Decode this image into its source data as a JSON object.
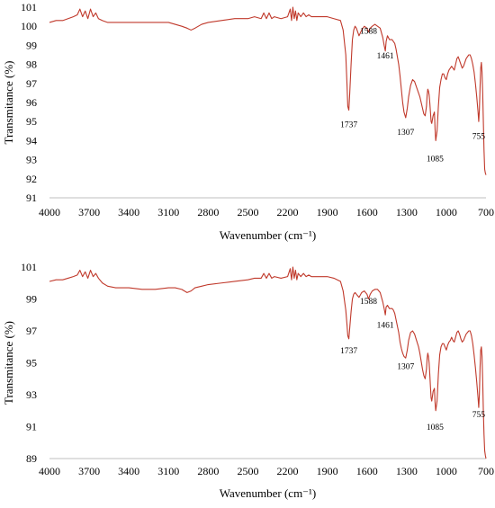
{
  "chart_data": [
    {
      "type": "line",
      "xlabel": "Wavenumber (cm⁻¹)",
      "ylabel": "Transmitance (%)",
      "xlim": [
        4000,
        700
      ],
      "ylim": [
        91,
        101
      ],
      "x_ticks": [
        "4000",
        "3700",
        "3400",
        "3100",
        "2800",
        "2500",
        "2200",
        "1900",
        "1600",
        "1300",
        "1000",
        "700"
      ],
      "y_ticks": [
        "91",
        "92",
        "93",
        "94",
        "95",
        "96",
        "97",
        "98",
        "99",
        "100",
        "101"
      ],
      "line_color": "#c0392b",
      "annotations": [
        {
          "label": "1588",
          "x": 1588,
          "y": 99.6
        },
        {
          "label": "1461",
          "x": 1461,
          "y": 98.3
        },
        {
          "label": "1737",
          "x": 1737,
          "y": 94.7
        },
        {
          "label": "1307",
          "x": 1307,
          "y": 94.3
        },
        {
          "label": "1085",
          "x": 1085,
          "y": 92.9
        },
        {
          "label": "755",
          "x": 755,
          "y": 94.1
        }
      ],
      "series": [
        {
          "x": [
            4000,
            3950,
            3900,
            3860,
            3820,
            3790,
            3770,
            3750,
            3730,
            3710,
            3690,
            3670,
            3650,
            3630,
            3600,
            3560,
            3500,
            3400,
            3300,
            3200,
            3100,
            3050,
            3000,
            2960,
            2930,
            2900,
            2850,
            2800,
            2700,
            2600,
            2500,
            2450,
            2400,
            2380,
            2360,
            2340,
            2320,
            2300,
            2250,
            2200,
            2180,
            2170,
            2160,
            2150,
            2140,
            2130,
            2120,
            2100,
            2080,
            2060,
            2040,
            2020,
            2000,
            1950,
            1900,
            1850,
            1800,
            1780,
            1760,
            1750,
            1745,
            1737,
            1730,
            1720,
            1710,
            1700,
            1690,
            1680,
            1660,
            1640,
            1620,
            1600,
            1588,
            1575,
            1560,
            1540,
            1520,
            1500,
            1480,
            1470,
            1461,
            1455,
            1445,
            1430,
            1410,
            1400,
            1390,
            1380,
            1370,
            1360,
            1350,
            1340,
            1330,
            1320,
            1307,
            1295,
            1285,
            1270,
            1255,
            1240,
            1225,
            1210,
            1200,
            1190,
            1180,
            1170,
            1160,
            1150,
            1145,
            1140,
            1135,
            1130,
            1125,
            1120,
            1115,
            1110,
            1100,
            1090,
            1085,
            1080,
            1070,
            1060,
            1050,
            1040,
            1030,
            1020,
            1010,
            1000,
            990,
            980,
            970,
            960,
            950,
            940,
            930,
            920,
            910,
            900,
            890,
            880,
            870,
            860,
            850,
            840,
            830,
            820,
            810,
            800,
            790,
            780,
            770,
            760,
            755,
            750,
            745,
            740,
            735,
            730,
            725,
            720,
            715,
            710,
            705,
            700
          ],
          "y": [
            100.2,
            100.3,
            100.3,
            100.4,
            100.5,
            100.6,
            100.9,
            100.5,
            100.8,
            100.4,
            100.9,
            100.5,
            100.7,
            100.4,
            100.3,
            100.2,
            100.2,
            100.2,
            100.2,
            100.2,
            100.2,
            100.1,
            100.0,
            99.9,
            99.8,
            99.9,
            100.1,
            100.2,
            100.3,
            100.4,
            100.4,
            100.5,
            100.4,
            100.7,
            100.4,
            100.7,
            100.4,
            100.5,
            100.4,
            100.5,
            100.9,
            100.3,
            101.0,
            100.4,
            100.8,
            100.3,
            100.7,
            100.5,
            100.7,
            100.5,
            100.6,
            100.5,
            100.5,
            100.5,
            100.5,
            100.4,
            100.3,
            99.8,
            98.5,
            96.8,
            95.8,
            95.6,
            96.5,
            98.0,
            99.3,
            99.8,
            100.0,
            99.9,
            99.5,
            99.8,
            100.0,
            99.9,
            99.7,
            99.9,
            100.0,
            100.1,
            100.0,
            99.9,
            99.4,
            99.0,
            98.7,
            99.2,
            99.5,
            99.3,
            99.3,
            99.2,
            99.1,
            98.8,
            98.4,
            98.0,
            97.4,
            96.7,
            96.0,
            95.5,
            95.2,
            95.7,
            96.3,
            96.9,
            97.2,
            97.1,
            96.8,
            96.5,
            96.3,
            96.0,
            95.7,
            95.4,
            95.3,
            95.8,
            96.4,
            96.7,
            96.6,
            96.4,
            96.0,
            95.5,
            95.0,
            94.9,
            95.3,
            95.5,
            94.6,
            94.0,
            94.5,
            95.8,
            96.8,
            97.2,
            97.5,
            97.5,
            97.3,
            97.2,
            97.5,
            97.7,
            97.8,
            97.9,
            97.8,
            97.7,
            98.0,
            98.3,
            98.4,
            98.2,
            98.0,
            97.8,
            97.9,
            98.1,
            98.3,
            98.4,
            98.5,
            98.5,
            98.3,
            98.0,
            97.6,
            97.0,
            96.3,
            95.5,
            95.0,
            95.6,
            96.8,
            97.8,
            98.1,
            97.6,
            96.5,
            95.0,
            93.5,
            92.5,
            92.3,
            92.2
          ]
        }
      ]
    },
    {
      "type": "line",
      "xlabel": "Wavenumber (cm⁻¹)",
      "ylabel": "Transmitance (%)",
      "xlim": [
        4000,
        700
      ],
      "ylim": [
        89,
        101
      ],
      "x_ticks": [
        "4000",
        "3700",
        "3400",
        "3100",
        "2800",
        "2500",
        "2200",
        "1900",
        "1600",
        "1300",
        "1000",
        "700"
      ],
      "y_ticks": [
        "89",
        "91",
        "93",
        "95",
        "97",
        "99",
        "101"
      ],
      "line_color": "#c0392b",
      "annotations": [
        {
          "label": "1588",
          "x": 1588,
          "y": 98.7
        },
        {
          "label": "1461",
          "x": 1461,
          "y": 97.2
        },
        {
          "label": "1737",
          "x": 1737,
          "y": 95.6
        },
        {
          "label": "1307",
          "x": 1307,
          "y": 94.6
        },
        {
          "label": "1085",
          "x": 1085,
          "y": 90.8
        },
        {
          "label": "755",
          "x": 755,
          "y": 91.6
        }
      ],
      "series": [
        {
          "x": [
            4000,
            3950,
            3900,
            3860,
            3820,
            3790,
            3770,
            3750,
            3730,
            3710,
            3690,
            3670,
            3650,
            3630,
            3600,
            3560,
            3500,
            3400,
            3300,
            3200,
            3100,
            3050,
            3000,
            2960,
            2930,
            2900,
            2850,
            2800,
            2700,
            2600,
            2500,
            2450,
            2400,
            2380,
            2360,
            2340,
            2320,
            2300,
            2250,
            2200,
            2180,
            2170,
            2160,
            2150,
            2140,
            2130,
            2120,
            2100,
            2080,
            2060,
            2040,
            2020,
            2000,
            1950,
            1900,
            1850,
            1800,
            1780,
            1760,
            1750,
            1745,
            1737,
            1730,
            1720,
            1710,
            1700,
            1690,
            1680,
            1660,
            1640,
            1620,
            1600,
            1588,
            1575,
            1560,
            1540,
            1520,
            1500,
            1480,
            1470,
            1461,
            1455,
            1445,
            1430,
            1410,
            1400,
            1390,
            1380,
            1370,
            1360,
            1350,
            1340,
            1330,
            1320,
            1307,
            1295,
            1285,
            1270,
            1255,
            1240,
            1225,
            1210,
            1200,
            1190,
            1180,
            1170,
            1160,
            1150,
            1145,
            1140,
            1135,
            1130,
            1125,
            1120,
            1115,
            1110,
            1100,
            1090,
            1085,
            1080,
            1070,
            1060,
            1050,
            1040,
            1030,
            1020,
            1010,
            1000,
            990,
            980,
            970,
            960,
            950,
            940,
            930,
            920,
            910,
            900,
            890,
            880,
            870,
            860,
            850,
            840,
            830,
            820,
            810,
            800,
            790,
            780,
            770,
            760,
            755,
            750,
            745,
            740,
            735,
            730,
            725,
            720,
            715,
            710,
            705,
            700
          ],
          "y": [
            100.1,
            100.2,
            100.2,
            100.3,
            100.4,
            100.5,
            100.8,
            100.4,
            100.7,
            100.3,
            100.8,
            100.4,
            100.6,
            100.3,
            100.0,
            99.8,
            99.7,
            99.7,
            99.6,
            99.6,
            99.7,
            99.7,
            99.6,
            99.4,
            99.5,
            99.7,
            99.8,
            99.9,
            100.0,
            100.1,
            100.2,
            100.3,
            100.3,
            100.6,
            100.3,
            100.6,
            100.3,
            100.4,
            100.3,
            100.4,
            100.9,
            100.2,
            101.0,
            100.3,
            100.8,
            100.2,
            100.6,
            100.4,
            100.6,
            100.4,
            100.5,
            100.4,
            100.4,
            100.4,
            100.4,
            100.3,
            100.1,
            99.5,
            98.3,
            97.3,
            96.7,
            96.5,
            97.2,
            98.2,
            99.0,
            99.3,
            99.4,
            99.3,
            99.1,
            99.4,
            99.5,
            99.3,
            99.0,
            99.3,
            99.5,
            99.6,
            99.6,
            99.4,
            98.8,
            98.4,
            98.0,
            98.5,
            98.6,
            98.4,
            98.4,
            98.3,
            98.1,
            97.7,
            97.3,
            96.9,
            96.3,
            95.9,
            95.6,
            95.4,
            95.3,
            95.8,
            96.4,
            96.9,
            97.0,
            96.8,
            96.4,
            96.0,
            95.6,
            95.1,
            94.6,
            94.2,
            94.0,
            94.6,
            95.3,
            95.6,
            95.4,
            95.0,
            94.3,
            93.5,
            92.8,
            92.6,
            93.2,
            93.4,
            92.5,
            92.0,
            92.6,
            94.3,
            95.5,
            96.0,
            96.2,
            96.2,
            96.0,
            95.8,
            96.1,
            96.3,
            96.4,
            96.6,
            96.4,
            96.3,
            96.6,
            96.9,
            97.0,
            96.8,
            96.5,
            96.3,
            96.4,
            96.6,
            96.8,
            96.9,
            97.0,
            97.0,
            96.7,
            96.2,
            95.5,
            94.7,
            93.8,
            92.8,
            92.2,
            93.0,
            94.7,
            95.8,
            96.0,
            95.4,
            93.9,
            92.0,
            90.5,
            89.5,
            89.2,
            89.0
          ]
        }
      ]
    }
  ]
}
